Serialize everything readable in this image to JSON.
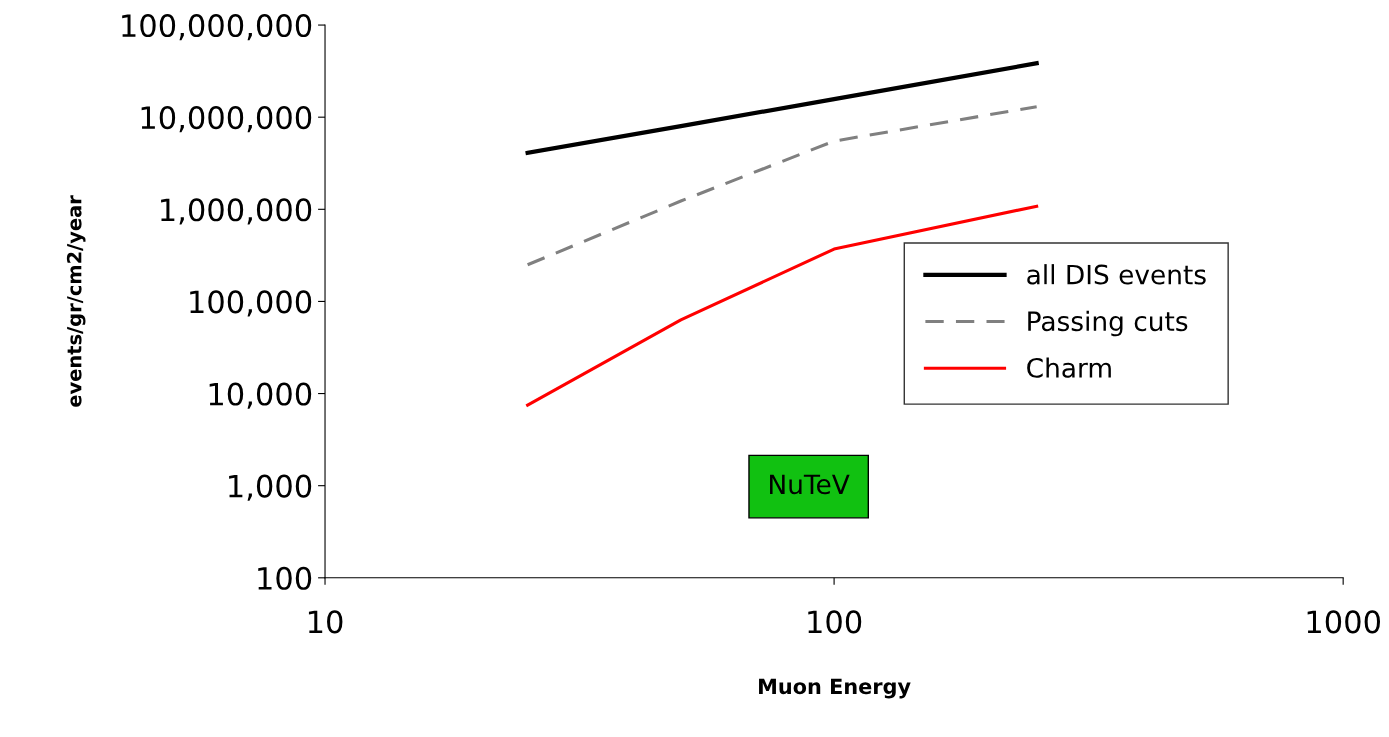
{
  "chart_data": {
    "type": "line",
    "xlabel": "Muon Energy",
    "ylabel": "events/gr/cm2/year",
    "log": "xy",
    "x": [
      25,
      50,
      100,
      250
    ],
    "xlim": [
      10,
      1000
    ],
    "xticks": [
      10,
      100,
      1000
    ],
    "ylim": [
      100,
      100000000
    ],
    "yticks": [
      {
        "value": 100,
        "label": "100"
      },
      {
        "value": 1000,
        "label": "1,000"
      },
      {
        "value": 10000,
        "label": "10,000"
      },
      {
        "value": 100000,
        "label": "100,000"
      },
      {
        "value": 1000000,
        "label": "1,000,000"
      },
      {
        "value": 10000000,
        "label": "10,000,000"
      },
      {
        "value": 100000000,
        "label": "100,000,000"
      }
    ],
    "series": [
      {
        "name": "all DIS events",
        "color": "#000000",
        "line_style": "solid",
        "values": [
          4100000,
          8000000,
          15700000,
          38500000
        ]
      },
      {
        "name": "Passing cuts",
        "color": "#808080",
        "line_style": "dashed",
        "values": [
          250000,
          1230000,
          5500000,
          13000000
        ]
      },
      {
        "name": "Charm",
        "color": "#ff0000",
        "line_style": "solid",
        "values": [
          7500,
          63000,
          370000,
          1080000
        ]
      }
    ],
    "legend": "center right",
    "annotations": [
      "NuTeV"
    ]
  }
}
